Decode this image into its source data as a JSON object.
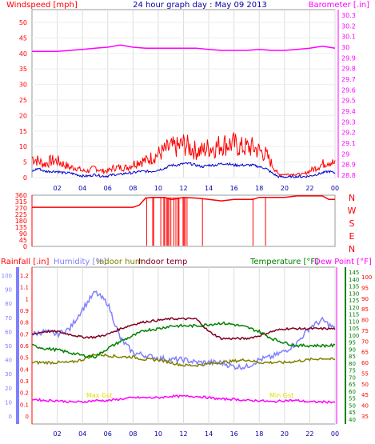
{
  "title": "24 hour graph day : May 09 2013",
  "colors": {
    "windspeed": "#ff0000",
    "gust_avg": "#0000cc",
    "barometer": "#ff00ff",
    "direction": "#ff0000",
    "rainfall": "#ff0000",
    "humidity": "#8080ff",
    "indoor_hum": "#808000",
    "indoor_temp": "#800020",
    "temperature": "#008000",
    "dew_point": "#ff00ff",
    "axis_blue": "#8080ff",
    "axis_red": "#ff0000",
    "axis_green": "#008000"
  },
  "x_ticks": [
    "02",
    "04",
    "06",
    "08",
    "10",
    "12",
    "14",
    "16",
    "18",
    "20",
    "22",
    "00"
  ],
  "chart_data": [
    {
      "type": "line",
      "name": "wind-barometer",
      "left_axis_label": "Windspeed [mph]",
      "right_axis_label": "Barometer [.in]",
      "left_ticks": [
        "0",
        "5",
        "10",
        "15",
        "20",
        "25",
        "30",
        "35",
        "40",
        "45",
        "50"
      ],
      "right_ticks": [
        "28.8",
        "28.9",
        "29",
        "29.1",
        "29.2",
        "29.3",
        "29.4",
        "29.5",
        "29.6",
        "29.7",
        "29.8",
        "29.9",
        "30",
        "30.1",
        "30.2",
        "30.3"
      ],
      "ylim_left": [
        0,
        50
      ],
      "ylim_right": [
        28.8,
        30.3
      ],
      "x_range_hours": [
        0,
        24
      ],
      "series": [
        {
          "name": "Windspeed",
          "x": [
            0,
            0.5,
            1,
            1.5,
            2,
            2.5,
            3,
            3.5,
            4,
            4.5,
            5,
            5.5,
            6,
            6.5,
            7,
            7.5,
            8,
            8.5,
            9,
            9.5,
            10,
            10.5,
            11,
            11.5,
            12,
            12.5,
            13,
            13.5,
            14,
            14.5,
            15,
            15.5,
            16,
            16.5,
            17,
            17.5,
            18,
            18.5,
            19,
            19.5,
            20,
            20.5,
            21,
            21.5,
            22,
            22.5,
            23,
            23.5,
            24
          ],
          "y": [
            6,
            5,
            4,
            5,
            5,
            4,
            3,
            3,
            2,
            2,
            3,
            2,
            2,
            3,
            3,
            3,
            4,
            5,
            5,
            6,
            7,
            8,
            9,
            9,
            10,
            9,
            8,
            8,
            9,
            9,
            10,
            10,
            10,
            9,
            9,
            9,
            8,
            7,
            4,
            1,
            1,
            1,
            1,
            1,
            2,
            3,
            4,
            5,
            4
          ]
        },
        {
          "name": "Gust",
          "x": [
            0,
            0.5,
            1,
            1.5,
            2,
            2.5,
            3,
            3.5,
            4,
            4.5,
            5,
            5.5,
            6,
            6.5,
            7,
            7.5,
            8,
            8.5,
            9,
            9.5,
            10,
            10.5,
            11,
            11.5,
            12,
            12.5,
            13,
            13.5,
            14,
            14.5,
            15,
            15.5,
            16,
            16.5,
            17,
            17.5,
            18,
            18.5,
            19,
            19.5,
            20,
            20.5,
            21,
            21.5,
            22,
            22.5,
            23,
            23.5,
            24
          ],
          "y": [
            2,
            3,
            2,
            2,
            2,
            1.5,
            1.5,
            1,
            0.5,
            0.5,
            1,
            0.5,
            0.5,
            1,
            1,
            1.5,
            1.5,
            2,
            2,
            2,
            2.5,
            3,
            4,
            4,
            4.5,
            4.5,
            4,
            3.5,
            4,
            4,
            4.5,
            4.5,
            4,
            4,
            4,
            4,
            3.5,
            3,
            1.5,
            0.3,
            0.2,
            0.2,
            0.3,
            0.3,
            0.5,
            1,
            1.5,
            2,
            1.5
          ]
        },
        {
          "name": "Barometer",
          "x": [
            0,
            1,
            2,
            3,
            4,
            5,
            6,
            7,
            8,
            9,
            10,
            11,
            12,
            13,
            14,
            15,
            16,
            17,
            18,
            19,
            20,
            21,
            22,
            23,
            24
          ],
          "y": [
            29.96,
            29.96,
            29.96,
            29.97,
            29.98,
            29.99,
            30.0,
            30.02,
            30.0,
            29.99,
            29.99,
            29.99,
            29.99,
            29.99,
            29.98,
            29.97,
            29.97,
            29.97,
            29.98,
            29.97,
            29.97,
            29.98,
            29.99,
            30.01,
            29.99
          ]
        }
      ]
    },
    {
      "type": "line",
      "name": "wind-direction",
      "left_ticks": [
        "0",
        "45",
        "90",
        "135",
        "180",
        "225",
        "270",
        "315",
        "360"
      ],
      "right_labels": [
        "N",
        "W",
        "S",
        "E",
        "N"
      ],
      "ylim": [
        0,
        360
      ],
      "series": [
        {
          "name": "Direction",
          "x": [
            0,
            1,
            2,
            3,
            4,
            5,
            6,
            7,
            8,
            8.5,
            9,
            9.5,
            10,
            10.5,
            11,
            11.5,
            12,
            13,
            14,
            15,
            16,
            17,
            17.5,
            18,
            19,
            20,
            21,
            22,
            23,
            23.5,
            24
          ],
          "y": [
            275,
            275,
            275,
            275,
            275,
            275,
            275,
            275,
            275,
            290,
            340,
            345,
            345,
            345,
            330,
            335,
            345,
            340,
            330,
            320,
            330,
            330,
            330,
            345,
            345,
            345,
            355,
            355,
            355,
            330,
            330
          ]
        }
      ]
    },
    {
      "type": "line",
      "name": "temperature-humidity",
      "left_axis_labels": [
        "Rainfall [.in]",
        "Humidity [%]",
        "Indoor hum",
        "Indoor temp"
      ],
      "right_axis_labels": [
        "Temperature [°F]",
        "Dew Point [°F]"
      ],
      "rain_ticks": [
        "0",
        "0.1",
        "0.2",
        "0.3",
        "0.4",
        "0.5",
        "0.6",
        "0.7",
        "0.8",
        "0.9",
        "1",
        "1.1",
        "1.2"
      ],
      "hum_ticks": [
        "0",
        "10",
        "20",
        "30",
        "40",
        "50",
        "60",
        "70",
        "80",
        "90",
        "100"
      ],
      "temp_ticks": [
        "40",
        "45",
        "50",
        "55",
        "60",
        "65",
        "70",
        "75",
        "80",
        "85",
        "90",
        "95",
        "100",
        "105",
        "110",
        "115",
        "120",
        "125",
        "130",
        "135",
        "140",
        "145"
      ],
      "dew_ticks": [
        "35",
        "40",
        "45",
        "50",
        "55",
        "60",
        "65",
        "70",
        "75",
        "80",
        "85",
        "90",
        "95",
        "100"
      ],
      "annotations": [
        "Max Gst",
        "Min Gst"
      ],
      "series": [
        {
          "name": "Humidity",
          "x": [
            0,
            1,
            2,
            3,
            4,
            5,
            6,
            7,
            8,
            9,
            10,
            11,
            12,
            13,
            14,
            15,
            16,
            17,
            18,
            19,
            20,
            21,
            22,
            23,
            24
          ],
          "y": [
            58,
            60,
            58,
            62,
            76,
            88,
            80,
            55,
            45,
            43,
            41,
            40,
            40,
            38,
            38,
            38,
            35,
            35,
            40,
            42,
            46,
            52,
            63,
            68,
            62
          ]
        },
        {
          "name": "Indoor hum",
          "x": [
            0,
            1,
            2,
            3,
            4,
            5,
            6,
            7,
            8,
            9,
            10,
            11,
            12,
            13,
            14,
            15,
            16,
            17,
            18,
            19,
            20,
            21,
            22,
            23,
            24
          ],
          "y": [
            38,
            38,
            38,
            38,
            40,
            44,
            43,
            42,
            42,
            40,
            40,
            38,
            36,
            36,
            37,
            38,
            39,
            40,
            38,
            38,
            38,
            39,
            40,
            41,
            40
          ]
        },
        {
          "name": "Indoor temp",
          "x": [
            0,
            1,
            2,
            3,
            4,
            5,
            6,
            7,
            8,
            9,
            10,
            11,
            12,
            13,
            14,
            15,
            16,
            17,
            18,
            19,
            20,
            21,
            22,
            23,
            24
          ],
          "y": [
            58,
            60,
            60,
            58,
            56,
            56,
            58,
            62,
            65,
            67,
            68,
            69,
            69,
            69,
            60,
            55,
            55,
            55,
            57,
            60,
            62,
            62,
            62,
            62,
            62
          ]
        },
        {
          "name": "Temperature",
          "x": [
            0,
            1,
            2,
            3,
            4,
            5,
            6,
            7,
            8,
            9,
            10,
            11,
            12,
            13,
            14,
            15,
            16,
            17,
            18,
            19,
            20,
            21,
            22,
            23,
            24
          ],
          "y": [
            50,
            48,
            47,
            45,
            43,
            42,
            48,
            53,
            57,
            61,
            62,
            64,
            64,
            64,
            65,
            66,
            65,
            63,
            60,
            55,
            52,
            50,
            50,
            50,
            50
          ]
        },
        {
          "name": "Dew Point",
          "x": [
            0,
            1,
            2,
            3,
            4,
            5,
            6,
            7,
            8,
            9,
            10,
            11,
            12,
            13,
            14,
            15,
            16,
            17,
            18,
            19,
            20,
            21,
            22,
            23,
            24
          ],
          "y": [
            44,
            43,
            43,
            42,
            42,
            43,
            43,
            44,
            45,
            45,
            45,
            46,
            46,
            46,
            45,
            44,
            44,
            43,
            43,
            42,
            43,
            43,
            42,
            42,
            42
          ]
        }
      ]
    }
  ]
}
